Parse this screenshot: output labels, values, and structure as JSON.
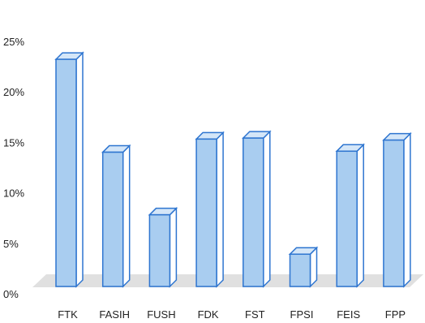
{
  "chart_data": {
    "type": "bar",
    "style": "3d-columns",
    "categories": [
      "FTK",
      "FASIH",
      "FUSH",
      "FDK",
      "FST",
      "FPSI",
      "FEIS",
      "FPP"
    ],
    "values": [
      22.5,
      13.3,
      7.1,
      14.6,
      14.7,
      3.2,
      13.4,
      14.5
    ],
    "ylim": [
      0,
      25
    ],
    "yticks": [
      "0%",
      "5%",
      "10%",
      "15%",
      "20%",
      "25%"
    ],
    "ytick_values": [
      0,
      5,
      10,
      15,
      20,
      25
    ],
    "grid": false,
    "legend": "none",
    "colors": {
      "bar_front": "#a9cdf0",
      "bar_side": "#ffffff",
      "bar_top": "#d4e6f8",
      "bar_edge": "#2e75d0",
      "floor": "#e0e0e0"
    }
  }
}
